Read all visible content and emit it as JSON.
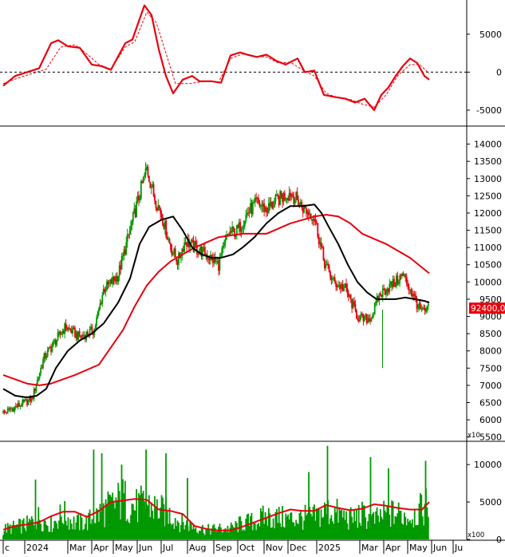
{
  "chart_data": [
    {
      "type": "line",
      "panel": "oscillator",
      "ylim": [
        -7000,
        9500
      ],
      "yticks": [
        5000,
        0,
        -5000
      ],
      "ytick_labels": [
        "5000",
        "0",
        "-5000"
      ],
      "zero_line": "dashed",
      "series": [
        {
          "role": "main",
          "color": "#e8000d",
          "style": "solid",
          "x": [
            0,
            0.5,
            1,
            1.5,
            2,
            2.3,
            2.7,
            3.2,
            3.7,
            4.1,
            4.5,
            5.1,
            5.4,
            5.9,
            6.2,
            6.5,
            6.8,
            7.1,
            7.5,
            7.9,
            8.2,
            8.7,
            9.1,
            9.5,
            9.9,
            10.2,
            10.6,
            11,
            11.4,
            11.8,
            12.3,
            12.6,
            13,
            13.4,
            13.9,
            14.3,
            14.7,
            15.1,
            15.5,
            15.8,
            16.1,
            16.4,
            16.7,
            17,
            17.3,
            17.6,
            17.8
          ],
          "values": [
            -1800,
            -500,
            0,
            500,
            3800,
            4200,
            3400,
            3200,
            1000,
            800,
            300,
            3800,
            4300,
            8800,
            7500,
            3000,
            -500,
            -2800,
            -1000,
            -500,
            -1200,
            -1200,
            -1400,
            2200,
            2600,
            2300,
            2000,
            2300,
            1500,
            1000,
            1800,
            0,
            200,
            -3000,
            -3300,
            -3500,
            -4000,
            -3500,
            -5000,
            -3000,
            -2000,
            -500,
            800,
            1800,
            1200,
            -500,
            -1000
          ]
        },
        {
          "role": "signal",
          "color": "#e8000d",
          "style": "dashed",
          "x": [
            0,
            0.6,
            1.2,
            1.8,
            2.4,
            3,
            3.5,
            4,
            4.5,
            5.1,
            5.5,
            6,
            6.4,
            6.8,
            7.2,
            7.8,
            8.4,
            9,
            9.5,
            10,
            10.5,
            11,
            11.5,
            12,
            12.5,
            13,
            13.5,
            14,
            14.5,
            15,
            15.5,
            16,
            16.5,
            17,
            17.4,
            17.8
          ],
          "values": [
            -1500,
            -800,
            -200,
            400,
            3300,
            3600,
            2400,
            1000,
            400,
            3300,
            4000,
            7900,
            6500,
            2500,
            -1500,
            -1500,
            -1200,
            -1300,
            1800,
            2400,
            2100,
            2000,
            1200,
            1300,
            300,
            -500,
            -2800,
            -3400,
            -3600,
            -4200,
            -4600,
            -3000,
            -400,
            1000,
            1000,
            -200
          ]
        }
      ]
    },
    {
      "type": "candlestick",
      "panel": "price",
      "ylim": [
        5400,
        14500
      ],
      "yticks": [
        14000,
        13500,
        13000,
        12500,
        12000,
        11500,
        11000,
        10500,
        10000,
        9500,
        9000,
        8500,
        8000,
        7500,
        7000,
        6500,
        6000,
        5500
      ],
      "ytick_labels": [
        "14000",
        "13500",
        "13000",
        "12500",
        "12000",
        "11500",
        "11000",
        "10500",
        "10000",
        "9500",
        "9000",
        "8500",
        "8000",
        "7500",
        "7000",
        "6500",
        "6000",
        "5500"
      ],
      "scale_label": "x10",
      "last_price_label": "92400,00",
      "last_price_value": 9240,
      "price_path": {
        "x": [
          0,
          0.6,
          1.2,
          1.7,
          2.1,
          2.6,
          3.2,
          3.8,
          4.2,
          4.4,
          4.8,
          5.3,
          5.8,
          6.0,
          6.3,
          6.6,
          7.0,
          7.3,
          7.6,
          8.0,
          8.5,
          9.0,
          9.4,
          9.8,
          10.2,
          10.6,
          11.0,
          11.5,
          12.0,
          12.6,
          13.0,
          13.4,
          13.8,
          14.3,
          14.8,
          15.1,
          15.4,
          15.7,
          16.0,
          16.4,
          16.7,
          17.0,
          17.2,
          17.4,
          17.6,
          17.8
        ],
        "values": [
          6200,
          6400,
          6600,
          7800,
          8200,
          8700,
          8400,
          8600,
          9800,
          9900,
          10200,
          11500,
          12800,
          13300,
          12500,
          12000,
          11000,
          10600,
          11200,
          11000,
          10800,
          10500,
          11400,
          11500,
          12000,
          12300,
          12100,
          12400,
          12600,
          12100,
          11900,
          10600,
          10000,
          9800,
          9000,
          8900,
          9000,
          9600,
          9800,
          10000,
          10200,
          9800,
          9500,
          9200,
          9100,
          9240
        ]
      },
      "series": [
        {
          "role": "slow-ma",
          "color": "#e8000d",
          "x": [
            0,
            1,
            1.5,
            2,
            3,
            4,
            5,
            5.5,
            6,
            6.5,
            7,
            8,
            9,
            10,
            11,
            12,
            13,
            13.5,
            14,
            14.5,
            15,
            16,
            17,
            17.8
          ],
          "values": [
            7300,
            7050,
            7000,
            7050,
            7300,
            7600,
            8600,
            9300,
            9900,
            10300,
            10600,
            11000,
            11300,
            11400,
            11400,
            11700,
            11900,
            11950,
            11900,
            11700,
            11400,
            11100,
            10700,
            10250
          ]
        },
        {
          "role": "fast-ma",
          "color": "#000000",
          "x": [
            0,
            0.5,
            1,
            1.4,
            1.8,
            2.2,
            2.7,
            3.2,
            3.7,
            4.2,
            4.8,
            5.3,
            5.7,
            6.1,
            6.6,
            7.1,
            7.5,
            7.9,
            8.3,
            8.7,
            9.1,
            9.6,
            10,
            10.5,
            11,
            11.5,
            12,
            12.5,
            13,
            13.3,
            13.6,
            14,
            14.4,
            14.8,
            15.2,
            15.6,
            16,
            16.4,
            16.8,
            17.2,
            17.6,
            17.8
          ],
          "values": [
            6900,
            6700,
            6650,
            6700,
            6900,
            7500,
            8000,
            8300,
            8500,
            8800,
            9400,
            10100,
            11100,
            11600,
            11800,
            11900,
            11500,
            11000,
            10800,
            10700,
            10700,
            10800,
            11000,
            11300,
            11700,
            12000,
            12200,
            12200,
            12250,
            12000,
            11600,
            11100,
            10500,
            10000,
            9700,
            9500,
            9500,
            9500,
            9550,
            9500,
            9450,
            9400
          ]
        }
      ]
    },
    {
      "type": "bar",
      "panel": "volume",
      "ylim": [
        0,
        13000
      ],
      "yticks": [
        10000,
        5000,
        0
      ],
      "ytick_labels": [
        "10000",
        "5000",
        "0"
      ],
      "scale_label": "x100",
      "bar_color": "#009900",
      "volume_envelope": {
        "x": [
          0,
          1,
          1.5,
          2,
          2.5,
          3,
          3.5,
          4,
          5,
          5.5,
          6,
          6.5,
          7,
          7.5,
          8,
          8.5,
          9,
          9.5,
          10,
          10.5,
          11,
          11.5,
          12,
          12.5,
          13,
          13.5,
          14,
          14.5,
          15,
          15.5,
          16,
          16.5,
          17,
          17.5,
          17.8
        ],
        "values": [
          1500,
          2200,
          3300,
          2200,
          3800,
          2400,
          2600,
          3800,
          6000,
          4800,
          5200,
          4400,
          3600,
          2400,
          2000,
          1400,
          1600,
          1600,
          2400,
          2600,
          3400,
          3200,
          3000,
          3200,
          3300,
          4200,
          3800,
          3000,
          3600,
          2800,
          3800,
          3800,
          3400,
          4400,
          5600
        ]
      },
      "spikes": [
        {
          "x": 1.35,
          "value": 8000
        },
        {
          "x": 3.78,
          "value": 12000
        },
        {
          "x": 4.12,
          "value": 11500
        },
        {
          "x": 4.95,
          "value": 10000
        },
        {
          "x": 5.97,
          "value": 12000
        },
        {
          "x": 6.8,
          "value": 11500
        },
        {
          "x": 7.7,
          "value": 8200
        },
        {
          "x": 12.77,
          "value": 9000
        },
        {
          "x": 13.55,
          "value": 12500
        },
        {
          "x": 15.35,
          "value": 11000
        },
        {
          "x": 16.1,
          "value": 9500
        },
        {
          "x": 17.65,
          "value": 10500
        }
      ],
      "series": [
        {
          "role": "volume-ma",
          "color": "#e8000d",
          "x": [
            0,
            0.5,
            1,
            1.5,
            2,
            2.5,
            3,
            3.5,
            4,
            4.5,
            5,
            5.5,
            6,
            6.5,
            7,
            7.5,
            8,
            8.5,
            9,
            9.5,
            10,
            10.5,
            11,
            11.5,
            12,
            12.5,
            13,
            13.5,
            14,
            14.5,
            15,
            15.5,
            16,
            16.5,
            17,
            17.5,
            17.8
          ],
          "values": [
            1300,
            1800,
            2000,
            2300,
            3100,
            3700,
            3700,
            3000,
            3800,
            5000,
            5200,
            5400,
            5300,
            4000,
            3800,
            3400,
            1800,
            1400,
            1200,
            1200,
            1700,
            2300,
            2900,
            3500,
            4000,
            3800,
            3800,
            4600,
            4200,
            3900,
            4100,
            4700,
            4500,
            4200,
            4000,
            4000,
            5000
          ]
        }
      ]
    }
  ],
  "x_axis": {
    "labels": [
      "c",
      "2024",
      "Mar",
      "Apr",
      "May",
      "Jun",
      "Jul",
      "Aug",
      "Sep",
      "Oct",
      "Nov",
      "Dec",
      "2025",
      "Mar",
      "Apr",
      "May",
      "Jun",
      "Ju"
    ],
    "positions": [
      0,
      0.9,
      2.7,
      3.7,
      4.6,
      5.6,
      6.6,
      7.7,
      8.8,
      9.8,
      10.9,
      11.9,
      13.1,
      14.9,
      15.9,
      16.9,
      17.9,
      18.8
    ]
  }
}
